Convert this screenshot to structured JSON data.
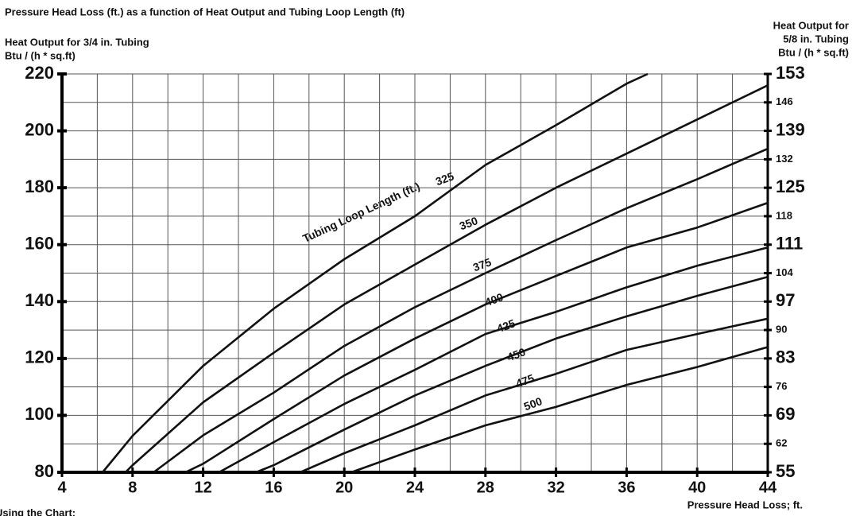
{
  "chart_data": {
    "type": "line",
    "title": "Pressure Head Loss (ft.) as a function of Heat Output and Tubing Loop Length (ft)",
    "ylabel": [
      "Heat Output for 3/4 in. Tubing",
      "Btu / (h * sq.ft)"
    ],
    "y2label": [
      "Heat Output for",
      "5/8 in. Tubing",
      "Btu / (h * sq.ft)"
    ],
    "xlabel": "Pressure Head Loss; ft.",
    "annotation": "Tubing Loop Length (ft.)",
    "footer": "Using the Chart:",
    "xlim": [
      4,
      44
    ],
    "xticks": [
      4,
      8,
      12,
      16,
      20,
      24,
      28,
      32,
      36,
      40,
      44
    ],
    "x_minor_ticks": [
      6,
      10,
      14,
      18,
      22,
      26,
      30,
      34,
      38,
      42
    ],
    "ylim": [
      80,
      220
    ],
    "yticks": [
      80,
      100,
      120,
      140,
      160,
      180,
      200,
      220
    ],
    "y_minor_ticks": [
      90,
      110,
      130,
      150,
      170,
      190,
      210
    ],
    "y2lim": [
      55,
      153
    ],
    "y2ticks": [
      55,
      62,
      69,
      76,
      83,
      90,
      97,
      104,
      111,
      118,
      125,
      132,
      139,
      146,
      153
    ],
    "grid": true,
    "color": "#111111",
    "series": [
      {
        "name": "325",
        "x": [
          6.3,
          8,
          12,
          16,
          20,
          24,
          28,
          32,
          36,
          37.2
        ],
        "values": [
          80,
          92.8,
          117.4,
          137.5,
          154.9,
          170,
          188,
          202,
          216.6,
          220
        ]
      },
      {
        "name": "350",
        "x": [
          7.6,
          8,
          12,
          16,
          20,
          24,
          28,
          32,
          36,
          40,
          44
        ],
        "values": [
          80,
          82.5,
          104.6,
          122,
          139,
          153,
          167,
          180,
          192,
          204,
          216
        ]
      },
      {
        "name": "375",
        "x": [
          9.2,
          12,
          16,
          20,
          24,
          28,
          32,
          36,
          40,
          44
        ],
        "values": [
          80,
          93,
          108,
          124.4,
          138,
          150,
          161.6,
          172.8,
          183,
          193.7
        ]
      },
      {
        "name": "400",
        "x": [
          11,
          12,
          16,
          20,
          24,
          28,
          32,
          36,
          40,
          44
        ],
        "values": [
          80,
          83,
          98.7,
          114,
          127,
          139,
          149,
          159,
          166,
          174.7
        ]
      },
      {
        "name": "425",
        "x": [
          12.9,
          16,
          20,
          24,
          28,
          32,
          36,
          40,
          44
        ],
        "values": [
          80,
          90.6,
          104,
          116,
          128.6,
          136.4,
          145,
          152.6,
          159
        ]
      },
      {
        "name": "450",
        "x": [
          15,
          16,
          20,
          24,
          28,
          32,
          36,
          40,
          44
        ],
        "values": [
          80,
          82.5,
          95,
          107,
          117.4,
          127,
          134.8,
          142,
          148.7
        ]
      },
      {
        "name": "475",
        "x": [
          17.5,
          20,
          24,
          28,
          32,
          36,
          40,
          44
        ],
        "values": [
          80,
          86.7,
          96.5,
          107,
          114.6,
          123,
          128.6,
          134
        ]
      },
      {
        "name": "500",
        "x": [
          20.4,
          24,
          28,
          32,
          36,
          40,
          44
        ],
        "values": [
          80,
          88,
          96.5,
          103,
          110.7,
          117,
          124
        ]
      }
    ]
  }
}
